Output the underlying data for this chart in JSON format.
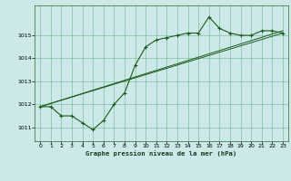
{
  "title": "Graphe pression niveau de la mer (hPa)",
  "bg_color": "#cce8e8",
  "line_color": "#1a5c1a",
  "grid_color": "#5aaa7a",
  "xlim": [
    -0.5,
    23.5
  ],
  "ylim": [
    1010.4,
    1016.3
  ],
  "yticks": [
    1011,
    1012,
    1013,
    1014,
    1015
  ],
  "xticks": [
    0,
    1,
    2,
    3,
    4,
    5,
    6,
    7,
    8,
    9,
    10,
    11,
    12,
    13,
    14,
    15,
    16,
    17,
    18,
    19,
    20,
    21,
    22,
    23
  ],
  "series1_x": [
    0,
    1,
    2,
    3,
    4,
    5,
    6,
    7,
    8,
    9,
    10,
    11,
    12,
    13,
    14,
    15,
    16,
    17,
    18,
    19,
    20,
    21,
    22,
    23
  ],
  "series1_y": [
    1011.9,
    1011.9,
    1011.5,
    1011.5,
    1011.2,
    1010.9,
    1011.3,
    1012.0,
    1012.5,
    1013.7,
    1014.5,
    1014.8,
    1014.9,
    1015.0,
    1015.1,
    1015.1,
    1015.8,
    1015.3,
    1015.1,
    1015.0,
    1015.0,
    1015.2,
    1015.2,
    1015.1
  ],
  "series2_x": [
    0,
    23
  ],
  "series2_y": [
    1011.9,
    1015.1
  ],
  "series3_x": [
    0,
    23
  ],
  "series3_y": [
    1011.9,
    1015.2
  ]
}
